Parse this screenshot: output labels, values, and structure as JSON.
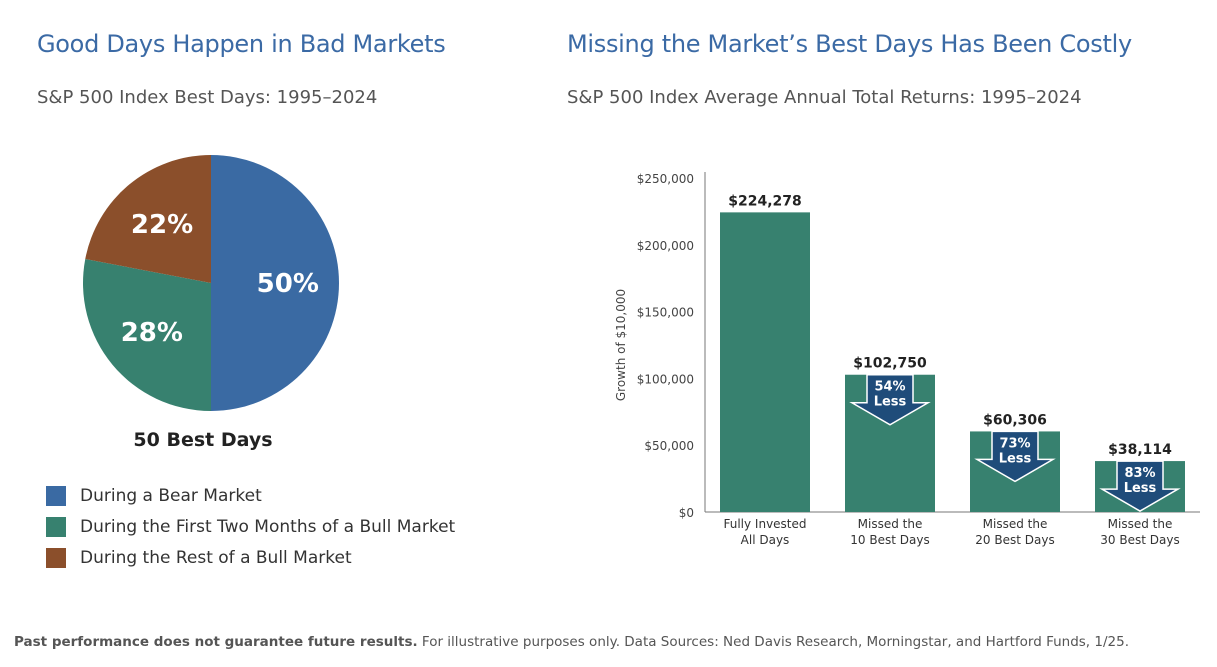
{
  "left": {
    "title": "Good Days Happen in Bad Markets",
    "subtitle": "S&P 500 Index Best Days: 1995–2024"
  },
  "right": {
    "title": "Missing the Market’s Best Days Has Been Costly",
    "subtitle": "S&P 500 Index Average Annual Total Returns: 1995–2024"
  },
  "footnote": {
    "bold": "Past performance does not guarantee future results.",
    "text": " For illustrative purposes only. Data Sources: Ned Davis Research, Morningstar, and Hartford Funds, 1/25."
  },
  "chart_data": [
    {
      "type": "pie",
      "caption": "50 Best Days",
      "start": "top",
      "direction": "clockwise",
      "slices": [
        {
          "label": "During a Bear Market",
          "value": 50,
          "display": "50%",
          "color": "#3a6aa3"
        },
        {
          "label": "During the First Two Months of a Bull Market",
          "value": 28,
          "display": "28%",
          "color": "#37816f"
        },
        {
          "label": "During the Rest of a Bull Market",
          "value": 22,
          "display": "22%",
          "color": "#8b4f2b"
        }
      ],
      "legend_placement": "bottom-left"
    },
    {
      "type": "bar",
      "ylabel": "Growth of $10,000",
      "ylim": [
        0,
        250000
      ],
      "yticks": [
        0,
        50000,
        100000,
        150000,
        200000,
        250000
      ],
      "ytick_labels": [
        "$0",
        "$50,000",
        "$100,000",
        "$150,000",
        "$200,000",
        "$250,000"
      ],
      "bar_color": "#37816f",
      "arrow_color": "#1f4c7a",
      "grid": false,
      "bars": [
        {
          "label_lines": [
            "Fully Invested",
            "All Days"
          ],
          "value": 224278,
          "display": "$224,278",
          "arrow": null
        },
        {
          "label_lines": [
            "Missed the",
            "10 Best Days"
          ],
          "value": 102750,
          "display": "$102,750",
          "arrow": [
            "54%",
            "Less"
          ]
        },
        {
          "label_lines": [
            "Missed the",
            "20 Best Days"
          ],
          "value": 60306,
          "display": "$60,306",
          "arrow": [
            "73%",
            "Less"
          ]
        },
        {
          "label_lines": [
            "Missed the",
            "30 Best Days"
          ],
          "value": 38114,
          "display": "$38,114",
          "arrow": [
            "83%",
            "Less"
          ]
        }
      ]
    }
  ]
}
